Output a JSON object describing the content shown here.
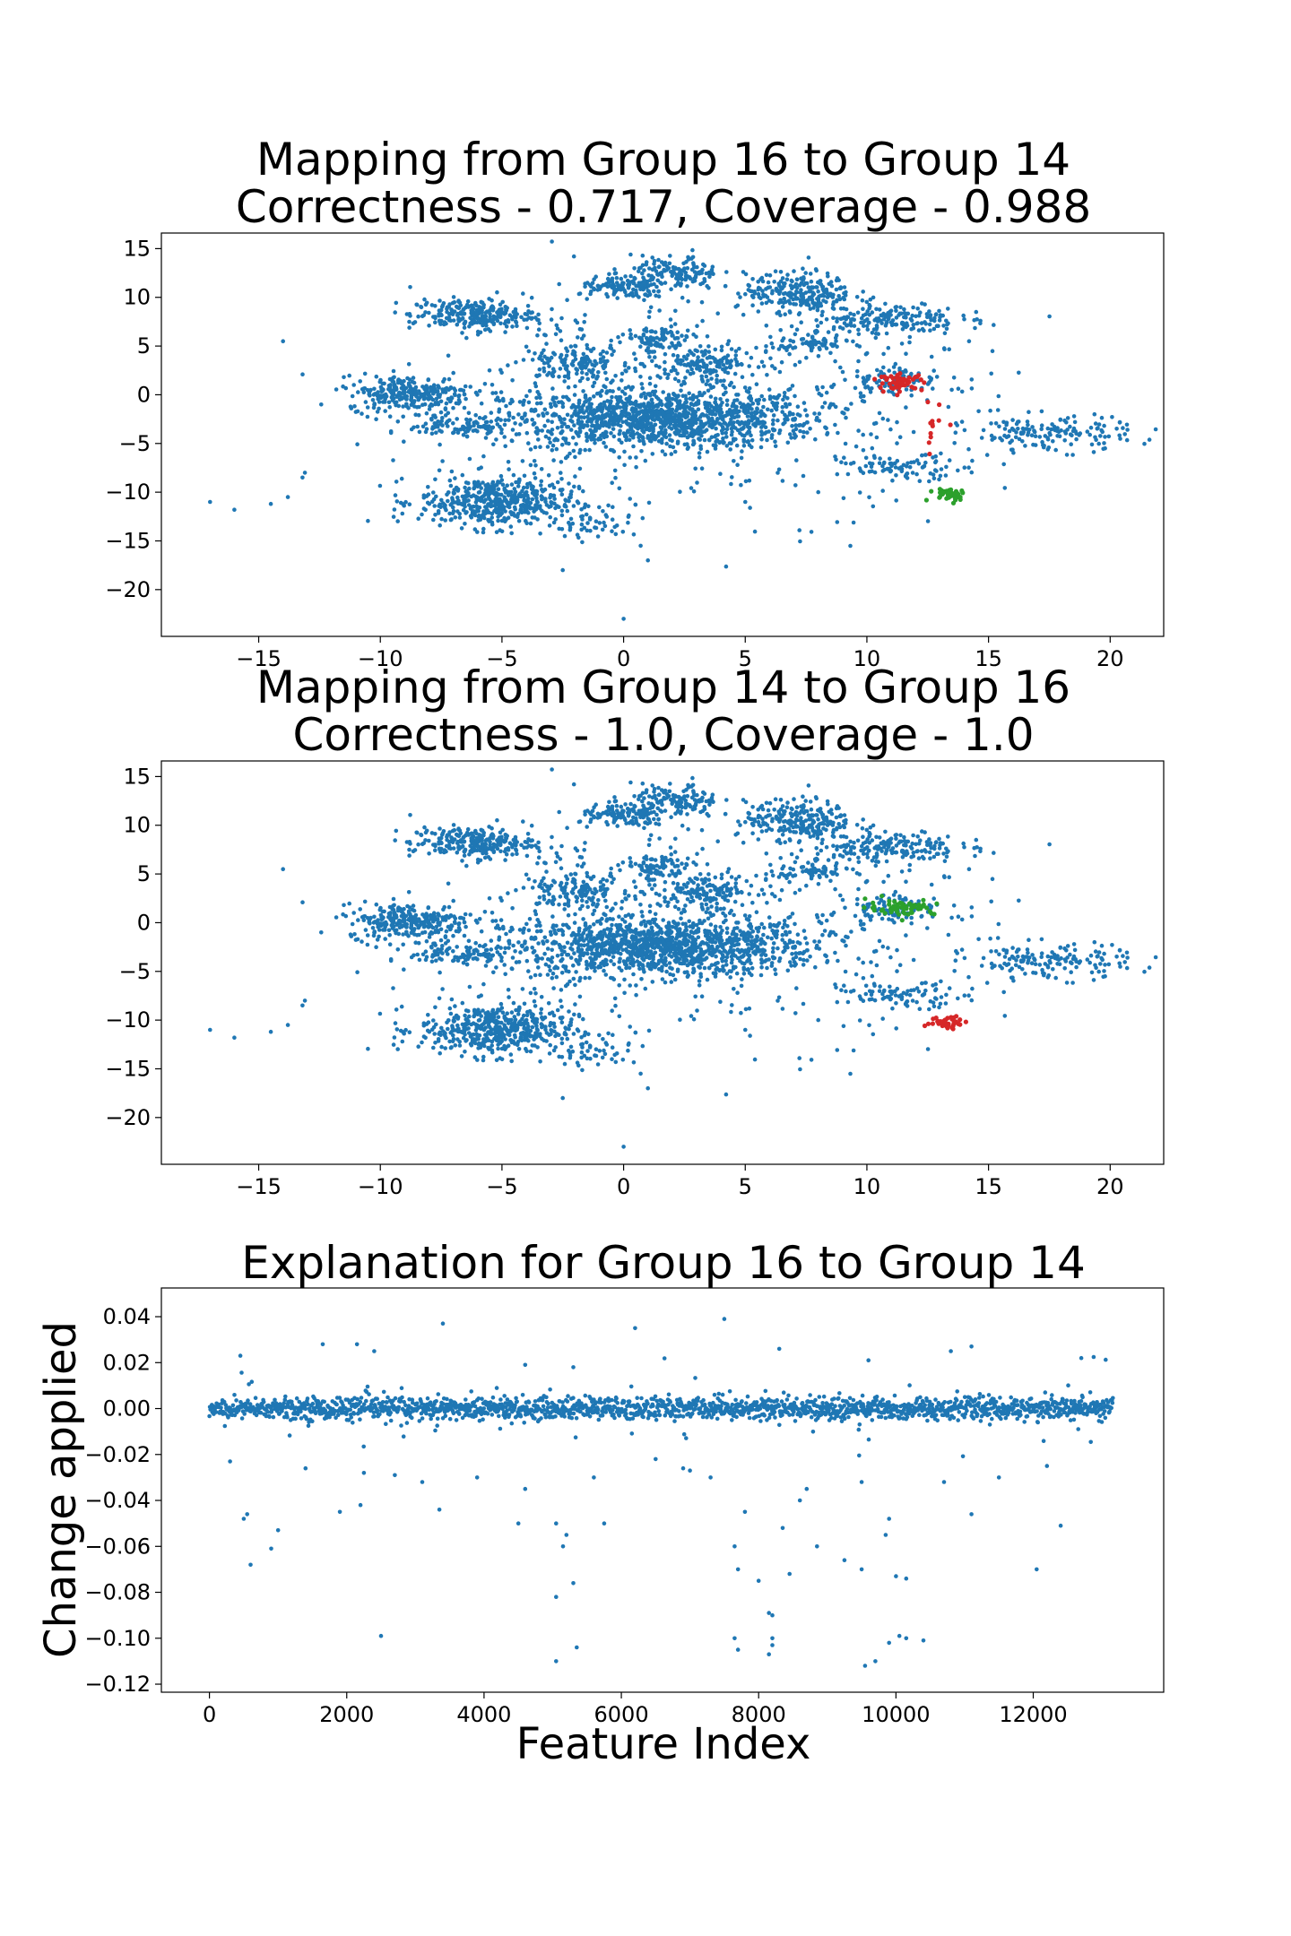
{
  "chart_data": [
    {
      "type": "scatter",
      "title_line1": "Mapping from Group 16 to Group 14",
      "title_line2": "Correctness - 0.717, Coverage - 0.988",
      "xlabel": "",
      "ylabel": "",
      "xlim": [
        -19,
        22.2
      ],
      "ylim": [
        -24.8,
        16.6
      ],
      "xticks": [
        -15,
        -10,
        -5,
        0,
        5,
        10,
        15,
        20
      ],
      "yticks": [
        15,
        10,
        5,
        0,
        -5,
        -10,
        -15,
        -20
      ],
      "grid": false,
      "colors": {
        "background_points": "#1f77b4",
        "source_group": "#d62728",
        "target_group": "#2ca02c"
      },
      "clusters": [
        {
          "cx": 1.5,
          "cy": -2.5,
          "sx": 3.2,
          "sy": 1.5,
          "n": 1200
        },
        {
          "cx": -5.2,
          "cy": -11,
          "sx": 1.6,
          "sy": 1.3,
          "n": 500
        },
        {
          "cx": -8.8,
          "cy": 0.2,
          "sx": 1.3,
          "sy": 0.9,
          "n": 280
        },
        {
          "cx": -6.2,
          "cy": 8.2,
          "sx": 1.3,
          "sy": 0.8,
          "n": 260
        },
        {
          "cx": 7.2,
          "cy": 10.5,
          "sx": 1.1,
          "sy": 1.0,
          "n": 230
        },
        {
          "cx": 10.8,
          "cy": 7.8,
          "sx": 1.5,
          "sy": 0.8,
          "n": 180
        },
        {
          "cx": 2.1,
          "cy": 12.4,
          "sx": 0.9,
          "sy": 0.9,
          "n": 150
        },
        {
          "cx": 0,
          "cy": 10.9,
          "sx": 0.9,
          "sy": 0.6,
          "n": 120
        },
        {
          "cx": -2,
          "cy": 3.3,
          "sx": 1.1,
          "sy": 0.9,
          "n": 140
        },
        {
          "cx": 3.5,
          "cy": 3.3,
          "sx": 1.0,
          "sy": 0.8,
          "n": 120
        },
        {
          "cx": 1.4,
          "cy": 5.6,
          "sx": 0.7,
          "sy": 0.7,
          "n": 90
        },
        {
          "cx": -6.8,
          "cy": -3.2,
          "sx": 1.0,
          "sy": 0.6,
          "n": 90
        },
        {
          "cx": 7.8,
          "cy": 5.2,
          "sx": 0.7,
          "sy": 0.5,
          "n": 60
        },
        {
          "cx": 17.5,
          "cy": -4,
          "sx": 1.7,
          "sy": 0.9,
          "n": 150
        },
        {
          "cx": 11.5,
          "cy": -7.5,
          "sx": 1.3,
          "sy": 0.6,
          "n": 90
        },
        {
          "cx": 11.2,
          "cy": 1.5,
          "sx": 1.0,
          "sy": 0.7,
          "n": 80
        },
        {
          "cx": -1.2,
          "cy": -13.5,
          "sx": 0.8,
          "sy": 0.6,
          "n": 40
        },
        {
          "cx": 3,
          "cy": 0,
          "sx": 6,
          "sy": 6,
          "n": 450
        }
      ],
      "highlights": [
        {
          "group": "source",
          "color": "#d62728",
          "cx": 11.4,
          "cy": 1.3,
          "sx": 0.45,
          "sy": 0.4,
          "n": 55
        },
        {
          "group": "source",
          "color": "#d62728",
          "cx": 12.8,
          "cy": -3.5,
          "sx": 0.3,
          "sy": 1.4,
          "n": 12
        },
        {
          "group": "target",
          "color": "#2ca02c",
          "cx": 13.4,
          "cy": -10.2,
          "sx": 0.4,
          "sy": 0.35,
          "n": 40
        }
      ],
      "outliers": [
        [
          -17,
          -11
        ],
        [
          -16,
          -11.8
        ],
        [
          -14.5,
          -11.2
        ],
        [
          -13.8,
          -10.5
        ],
        [
          -13.2,
          -8.5
        ],
        [
          -13.1,
          -8
        ],
        [
          0,
          -23
        ],
        [
          14.2,
          5.5
        ],
        [
          -14,
          5.5
        ],
        [
          5,
          -11
        ],
        [
          8,
          -10
        ],
        [
          1,
          -17
        ],
        [
          0.7,
          -15.5
        ],
        [
          -2.5,
          -18
        ]
      ],
      "total_points_estimate": 9000
    },
    {
      "type": "scatter",
      "title_line1": "Mapping from Group 14 to Group 16",
      "title_line2": "Correctness - 1.0, Coverage - 1.0",
      "xlabel": "",
      "ylabel": "",
      "xlim": [
        -19,
        22.2
      ],
      "ylim": [
        -24.8,
        16.6
      ],
      "xticks": [
        -15,
        -10,
        -5,
        0,
        5,
        10,
        15,
        20
      ],
      "yticks": [
        15,
        10,
        5,
        0,
        -5,
        -10,
        -15,
        -20
      ],
      "grid": false,
      "colors": {
        "background_points": "#1f77b4",
        "source_group": "#d62728",
        "target_group": "#2ca02c"
      },
      "clusters": "same as first plot",
      "highlights": [
        {
          "group": "source",
          "color": "#d62728",
          "cx": 13.4,
          "cy": -10.2,
          "sx": 0.4,
          "sy": 0.35,
          "n": 40
        },
        {
          "group": "target",
          "color": "#2ca02c",
          "cx": 11.4,
          "cy": 1.6,
          "sx": 0.7,
          "sy": 0.4,
          "n": 60
        }
      ]
    },
    {
      "type": "scatter",
      "title_line1": "Explanation for Group 16 to Group 14",
      "title_line2": "",
      "xlabel": "Feature Index",
      "ylabel": "Change applied",
      "xlim": [
        -700,
        13900
      ],
      "ylim": [
        -0.1235,
        0.0525
      ],
      "xticks": [
        0,
        2000,
        4000,
        6000,
        8000,
        10000,
        12000
      ],
      "yticks": [
        0.04,
        0.02,
        0.0,
        -0.02,
        -0.04,
        -0.06,
        -0.08,
        -0.1,
        -0.12
      ],
      "ytick_labels": [
        "0.04",
        "0.02",
        "0.00",
        "−0.02",
        "−0.04",
        "−0.06",
        "−0.08",
        "−0.10",
        "−0.12"
      ],
      "grid": false,
      "color": "#1f77b4",
      "n_features": 13166,
      "dense_band": {
        "x_range": [
          0,
          13166
        ],
        "sigma": 0.0025
      },
      "notable_points": [
        [
          7500,
          0.039
        ],
        [
          3400,
          0.037
        ],
        [
          6200,
          0.035
        ],
        [
          1650,
          0.028
        ],
        [
          2150,
          0.028
        ],
        [
          11100,
          0.027
        ],
        [
          8300,
          0.026
        ],
        [
          2400,
          0.025
        ],
        [
          450,
          0.023
        ],
        [
          12700,
          0.022
        ],
        [
          9600,
          0.021
        ],
        [
          10800,
          0.025
        ],
        [
          5300,
          0.018
        ],
        [
          4600,
          0.019
        ],
        [
          300,
          -0.023
        ],
        [
          2250,
          -0.028
        ],
        [
          2700,
          -0.029
        ],
        [
          3900,
          -0.03
        ],
        [
          7000,
          -0.027
        ],
        [
          9500,
          -0.032
        ],
        [
          12200,
          -0.025
        ],
        [
          8700,
          -0.035
        ],
        [
          550,
          -0.046
        ],
        [
          1900,
          -0.045
        ],
        [
          2200,
          -0.042
        ],
        [
          3350,
          -0.044
        ],
        [
          4500,
          -0.05
        ],
        [
          5050,
          -0.05
        ],
        [
          7800,
          -0.045
        ],
        [
          8600,
          -0.04
        ],
        [
          9900,
          -0.048
        ],
        [
          11100,
          -0.046
        ],
        [
          12400,
          -0.051
        ],
        [
          500,
          -0.048
        ],
        [
          1000,
          -0.053
        ],
        [
          5200,
          -0.055
        ],
        [
          5750,
          -0.05
        ],
        [
          7650,
          -0.06
        ],
        [
          8350,
          -0.052
        ],
        [
          8850,
          -0.06
        ],
        [
          9850,
          -0.055
        ],
        [
          600,
          -0.068
        ],
        [
          900,
          -0.061
        ],
        [
          5150,
          -0.06
        ],
        [
          7700,
          -0.07
        ],
        [
          8450,
          -0.072
        ],
        [
          9250,
          -0.066
        ],
        [
          9500,
          -0.07
        ],
        [
          10000,
          -0.073
        ],
        [
          12050,
          -0.07
        ],
        [
          5050,
          -0.082
        ],
        [
          5300,
          -0.076
        ],
        [
          8000,
          -0.075
        ],
        [
          10150,
          -0.074
        ],
        [
          8200,
          -0.09
        ],
        [
          8150,
          -0.089
        ],
        [
          2500,
          -0.099
        ],
        [
          7650,
          -0.1
        ],
        [
          8200,
          -0.1
        ],
        [
          10050,
          -0.099
        ],
        [
          10400,
          -0.101
        ],
        [
          9900,
          -0.102
        ],
        [
          5350,
          -0.104
        ],
        [
          8200,
          -0.103
        ],
        [
          7700,
          -0.105
        ],
        [
          5050,
          -0.11
        ],
        [
          8150,
          -0.107
        ],
        [
          9700,
          -0.11
        ],
        [
          9550,
          -0.112
        ],
        [
          10150,
          -0.1
        ],
        [
          4600,
          -0.035
        ],
        [
          5600,
          -0.03
        ],
        [
          6900,
          -0.026
        ],
        [
          11500,
          -0.03
        ],
        [
          1400,
          -0.026
        ],
        [
          3100,
          -0.032
        ],
        [
          10700,
          -0.032
        ],
        [
          6500,
          -0.022
        ],
        [
          7300,
          -0.03
        ]
      ]
    }
  ]
}
